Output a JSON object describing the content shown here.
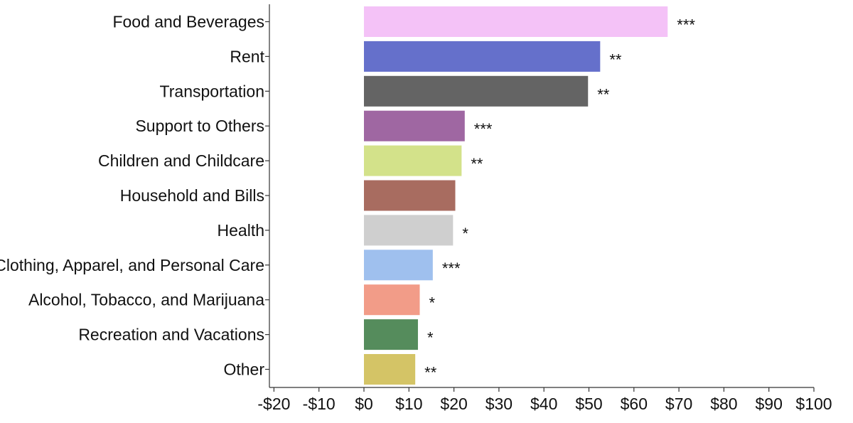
{
  "chart_data": {
    "type": "bar",
    "orientation": "horizontal",
    "title": "",
    "xlabel": "",
    "ylabel": "",
    "xlim": [
      -20,
      100
    ],
    "x_ticks": [
      -20,
      -10,
      0,
      10,
      20,
      30,
      40,
      50,
      60,
      70,
      80,
      90,
      100
    ],
    "x_tick_labels": [
      "-$20",
      "-$10",
      "$0",
      "$10",
      "$20",
      "$30",
      "$40",
      "$50",
      "$60",
      "$70",
      "$80",
      "$90",
      "$100"
    ],
    "grid": false,
    "legend": "none",
    "categories": [
      "Food and Beverages",
      "Rent",
      "Transportation",
      "Support to Others",
      "Children and Childcare",
      "Household and Bills",
      "Health",
      "Clothing, Apparel, and Personal Care",
      "Alcohol, Tobacco, and Marijuana",
      "Recreation and Vacations",
      "Other"
    ],
    "values": [
      67.5,
      52.5,
      49.8,
      22.4,
      21.7,
      20.3,
      19.8,
      15.3,
      12.4,
      12.0,
      11.4
    ],
    "significance": [
      "***",
      "**",
      "**",
      "***",
      "**",
      "",
      "*",
      "***",
      "*",
      "*",
      "**"
    ],
    "colors": [
      "#f4c2f7",
      "#6570cb",
      "#646464",
      "#9f67a2",
      "#d3e28a",
      "#a86c60",
      "#cfcfcf",
      "#9fc0ee",
      "#f29c88",
      "#558c5c",
      "#d4c466"
    ]
  }
}
